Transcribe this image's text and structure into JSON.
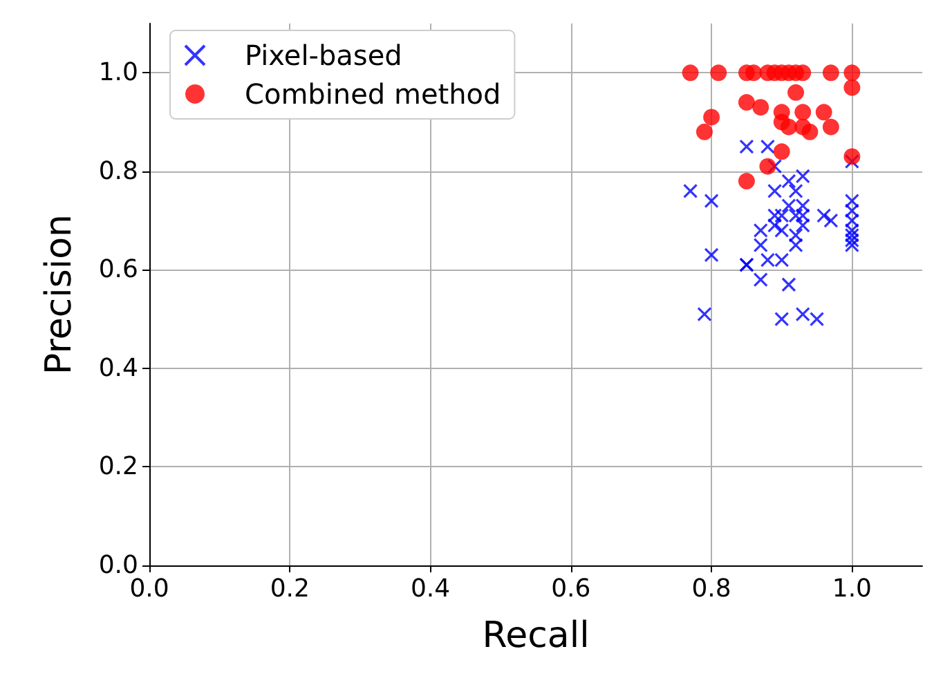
{
  "chart_data": {
    "type": "scatter",
    "xlabel": "Recall",
    "ylabel": "Precision",
    "xlim": [
      0,
      1.1
    ],
    "ylim": [
      0,
      1.1
    ],
    "xticks": [
      {
        "value": 0,
        "label": "0.0"
      },
      {
        "value": 0.2,
        "label": "0.2"
      },
      {
        "value": 0.4,
        "label": "0.4"
      },
      {
        "value": 0.6,
        "label": "0.6"
      },
      {
        "value": 0.8,
        "label": "0.8"
      },
      {
        "value": 1,
        "label": "1.0"
      }
    ],
    "yticks": [
      {
        "value": 0,
        "label": "0.0"
      },
      {
        "value": 0.2,
        "label": "0.2"
      },
      {
        "value": 0.4,
        "label": "0.4"
      },
      {
        "value": 0.6,
        "label": "0.6"
      },
      {
        "value": 0.8,
        "label": "0.8"
      },
      {
        "value": 1,
        "label": "1.0"
      }
    ],
    "grid": true,
    "legend": "top left",
    "series": [
      {
        "name": "Pixel-based",
        "color": "#0000ff",
        "marker": "cross",
        "x": [
          0.85,
          0.88,
          0.89,
          0.91,
          0.93,
          0.92,
          0.89,
          0.77,
          0.8,
          0.91,
          0.93,
          0.89,
          0.9,
          0.92,
          0.93,
          0.96,
          0.97,
          0.89,
          0.9,
          0.93,
          0.87,
          0.92,
          0.87,
          0.92,
          0.8,
          0.85,
          0.85,
          0.88,
          0.9,
          0.87,
          0.91,
          0.79,
          0.9,
          0.93,
          0.95,
          1.0,
          1.0,
          1.0,
          1.0,
          1.0,
          1.0,
          1.0,
          1.0
        ],
        "values": [
          0.85,
          0.85,
          0.81,
          0.78,
          0.79,
          0.76,
          0.76,
          0.76,
          0.74,
          0.73,
          0.73,
          0.71,
          0.71,
          0.71,
          0.71,
          0.71,
          0.7,
          0.69,
          0.68,
          0.69,
          0.68,
          0.67,
          0.65,
          0.65,
          0.63,
          0.61,
          0.61,
          0.62,
          0.62,
          0.58,
          0.57,
          0.51,
          0.5,
          0.51,
          0.5,
          0.82,
          0.74,
          0.72,
          0.7,
          0.68,
          0.67,
          0.66,
          0.65
        ]
      },
      {
        "name": "Combined method",
        "color": "#ff0000",
        "marker": "circle",
        "x": [
          0.77,
          0.81,
          0.85,
          0.86,
          0.88,
          0.89,
          0.9,
          0.91,
          0.92,
          0.93,
          0.97,
          1.0,
          1.0,
          0.85,
          0.87,
          0.92,
          0.9,
          0.93,
          0.96,
          0.97,
          0.93,
          0.91,
          0.9,
          0.94,
          0.8,
          0.79,
          0.9,
          0.88,
          0.85,
          1.0
        ],
        "values": [
          1.0,
          1.0,
          1.0,
          1.0,
          1.0,
          1.0,
          1.0,
          1.0,
          1.0,
          1.0,
          1.0,
          1.0,
          0.97,
          0.94,
          0.93,
          0.96,
          0.92,
          0.92,
          0.92,
          0.89,
          0.89,
          0.89,
          0.9,
          0.88,
          0.91,
          0.88,
          0.84,
          0.81,
          0.78,
          0.83
        ]
      }
    ]
  }
}
